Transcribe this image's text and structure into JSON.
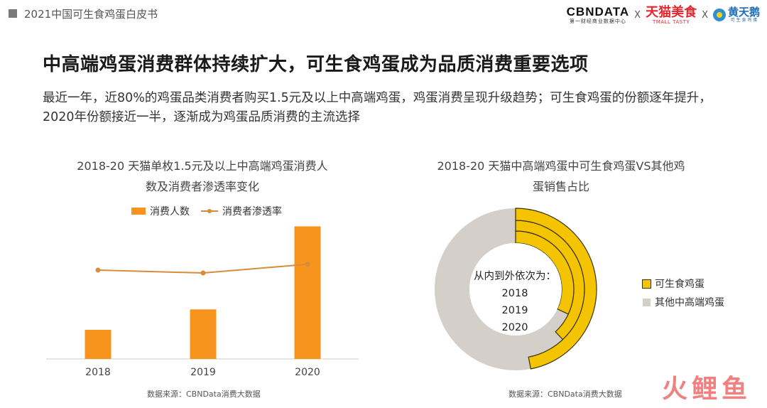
{
  "header": {
    "title": "2021中国可生食鸡蛋白皮书",
    "logo_cbn_main": "CBNDATA",
    "logo_cbn_sub": "第一财经商业数据中心",
    "separator": "X",
    "logo_tmall_main": "天猫美食",
    "logo_tmall_sub": "TMALL TASTY",
    "logo_hty_main": "黄天鹅",
    "logo_hty_sub": "可 生 食 鸡 蛋"
  },
  "main_title": "中高端鸡蛋消费群体持续扩大，可生食鸡蛋成为品质消费重要选项",
  "subtitle": "最近一年，近80%的鸡蛋品类消费者购买1.5元及以上中高端鸡蛋，鸡蛋消费呈现升级趋势；可生食鸡蛋的份额逐年提升，2020年份额接近一半，逐渐成为鸡蛋品质消费的主流选择",
  "watermark": "火鲤鱼",
  "chart_data": [
    {
      "type": "bar",
      "title_line1": "2018-20 天猫单枚1.5元及以上中高端鸡蛋消费人",
      "title_line2": "数及消费者渗透率变化",
      "categories": [
        "2018",
        "2019",
        "2020"
      ],
      "series": [
        {
          "name": "消费人数",
          "kind": "bar",
          "color": "#f7941d",
          "values": [
            20,
            34,
            91
          ]
        },
        {
          "name": "消费者渗透率",
          "kind": "line",
          "color": "#d98b3a",
          "values": [
            61,
            59,
            65
          ]
        }
      ],
      "ylim": [
        0,
        100
      ],
      "grid": false,
      "legend": "top",
      "source": "数据来源：CBNData消费大数据"
    },
    {
      "type": "pie",
      "title_line1": "2018-20 天猫中高端鸡蛋中可生食鸡蛋VS其他鸡",
      "title_line2": "蛋销售占比",
      "rings": [
        "2018",
        "2019",
        "2020"
      ],
      "series": [
        {
          "name": "可生食鸡蛋",
          "color": "#f5c400",
          "values": [
            0.32,
            0.38,
            0.47
          ]
        },
        {
          "name": "其他中高端鸡蛋",
          "color": "#d5cfca",
          "values": [
            0.68,
            0.62,
            0.53
          ]
        }
      ],
      "center_label": "从内到外依次为：",
      "legend": "right",
      "source": "数据来源：CBNData消费大数据"
    }
  ]
}
